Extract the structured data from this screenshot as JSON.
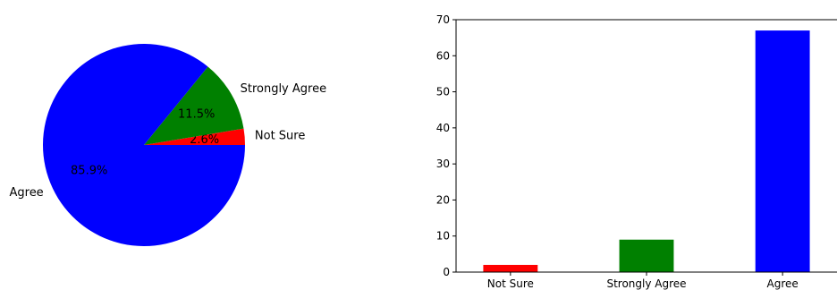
{
  "chart_data": [
    {
      "type": "pie",
      "categories": [
        "Not Sure",
        "Strongly Agree",
        "Agree"
      ],
      "values": [
        2.6,
        11.5,
        85.9
      ],
      "percent_labels": [
        "2.6%",
        "11.5%",
        "85.9%"
      ],
      "colors": [
        "#ff0000",
        "#008000",
        "#0000ff"
      ],
      "start_angle_deg": 0,
      "direction": "counterclockwise"
    },
    {
      "type": "bar",
      "categories": [
        "Not Sure",
        "Strongly Agree",
        "Agree"
      ],
      "values": [
        2,
        9,
        67
      ],
      "colors": [
        "#ff0000",
        "#008000",
        "#0000ff"
      ],
      "ylim": [
        0,
        70
      ],
      "yticks": [
        0,
        10,
        20,
        30,
        40,
        50,
        60,
        70
      ],
      "grid": false
    }
  ]
}
